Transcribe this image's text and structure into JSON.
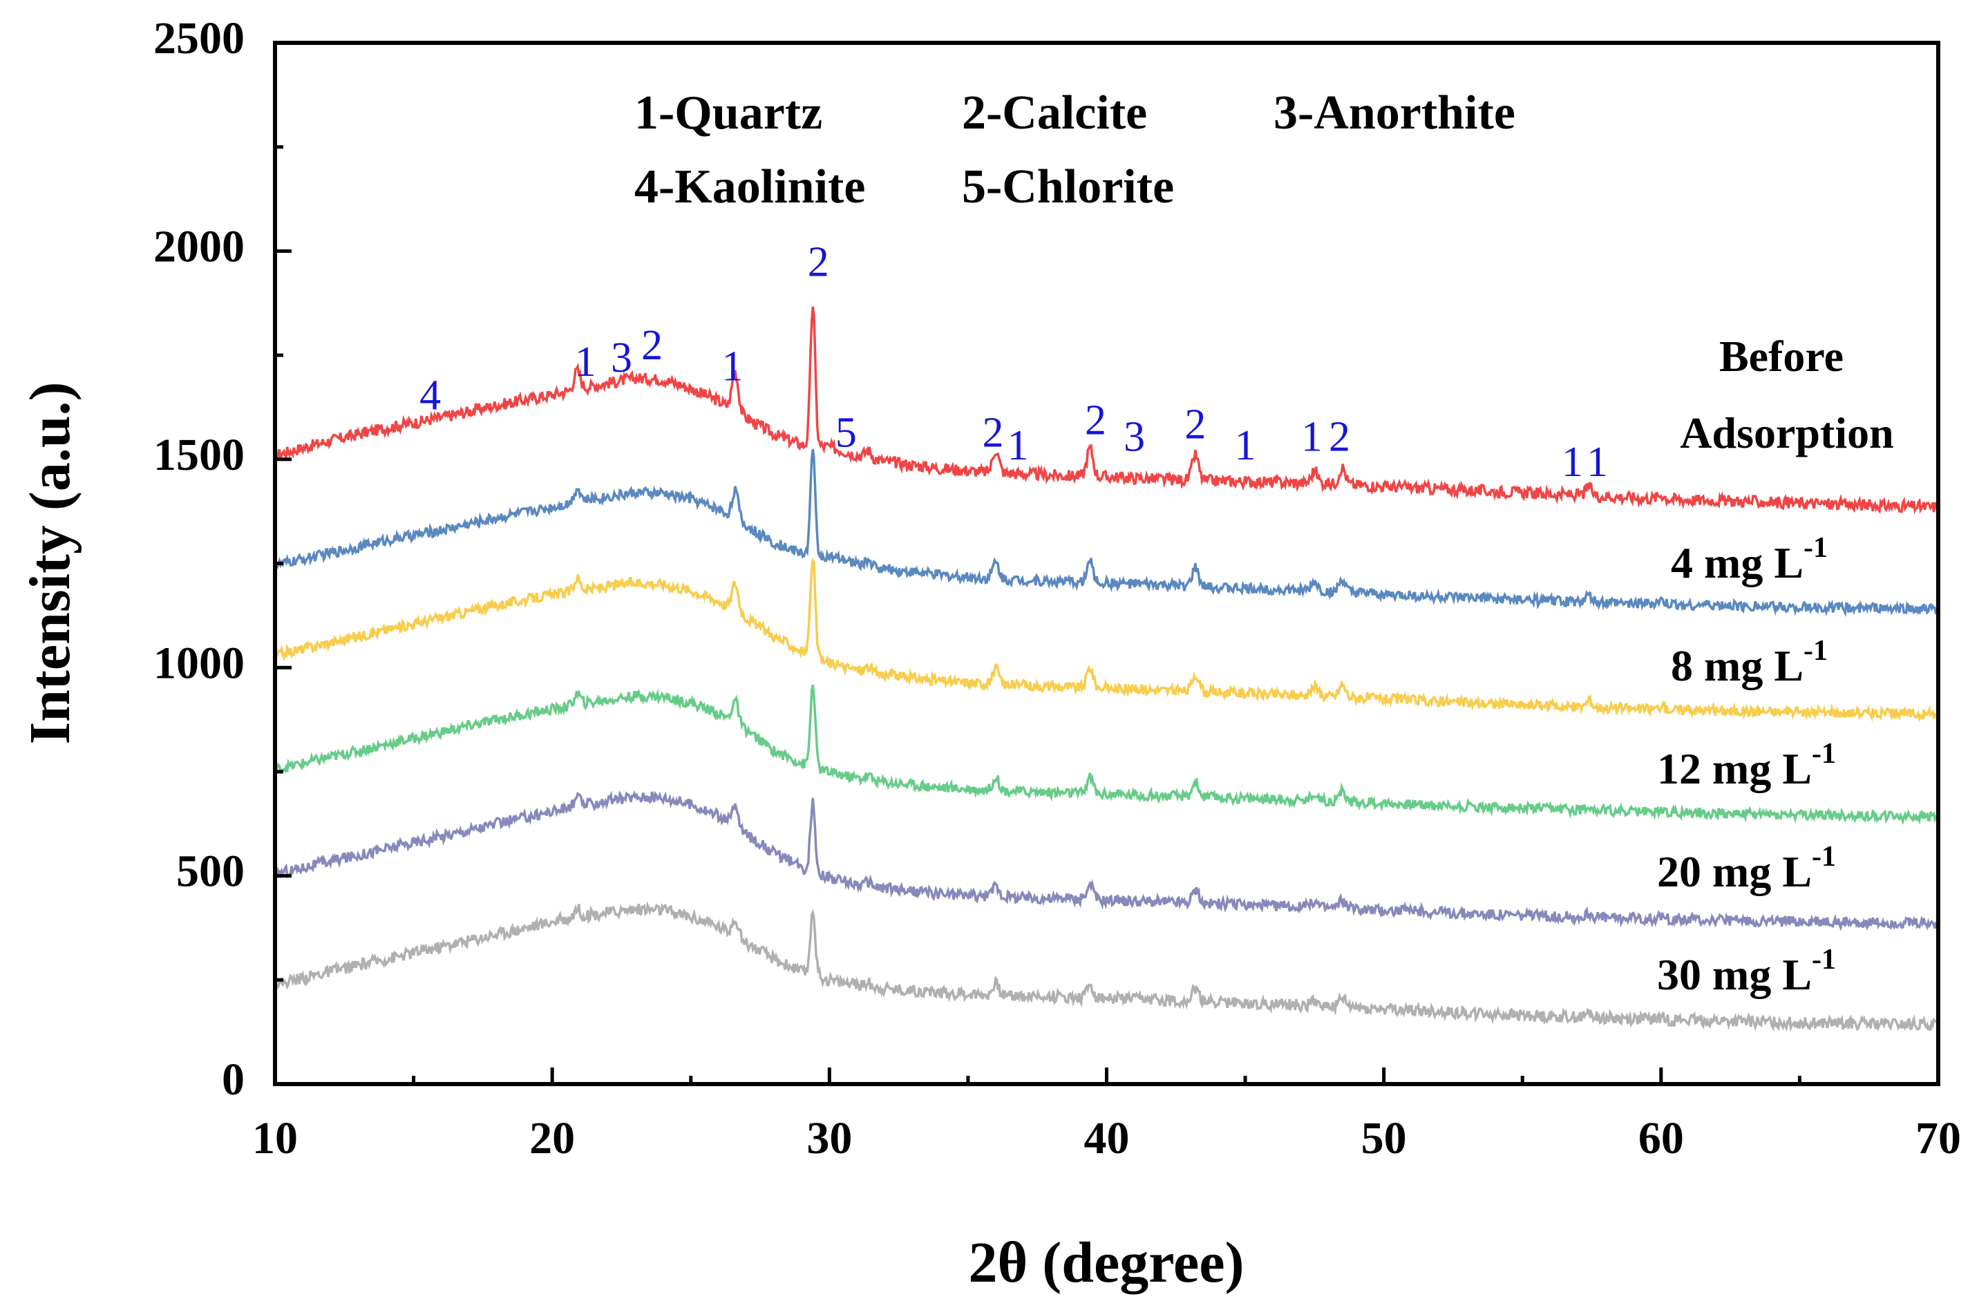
{
  "chart_data": {
    "type": "line",
    "xlabel": "2θ (degree)",
    "ylabel": "Intensity (a.u.)",
    "xlim": [
      10,
      70
    ],
    "ylim": [
      0,
      2500
    ],
    "xticks": [
      10,
      20,
      30,
      40,
      50,
      60,
      70
    ],
    "yticks": [
      0,
      500,
      1000,
      1500,
      2000,
      2500
    ],
    "xtick_labels": [
      "10",
      "20",
      "30",
      "40",
      "50",
      "60",
      "70"
    ],
    "ytick_labels": [
      "0",
      "500",
      "1000",
      "1500",
      "2000",
      "2500"
    ],
    "phase_legend": {
      "row1": [
        "1-Quartz",
        "2-Calcite",
        "3-Anorthite"
      ],
      "row2": [
        "4-Kaolinite",
        "5-Chlorite"
      ]
    },
    "peak_positions_deg": [
      20.9,
      26.6,
      29.4,
      31.4,
      36.0,
      39.4,
      43.2,
      47.5,
      48.5,
      57.4,
      60.0
    ],
    "peak_relative_intensity": [
      0.13,
      0.28,
      1.0,
      0.05,
      0.16,
      0.2,
      0.18,
      0.09,
      0.12,
      0.06,
      0.03
    ],
    "peak_annotations": [
      {
        "text": "4",
        "x": 15.6,
        "y": 1620
      },
      {
        "text": "1",
        "x": 21.2,
        "y": 1700
      },
      {
        "text": "3",
        "x": 22.5,
        "y": 1710
      },
      {
        "text": "2",
        "x": 23.6,
        "y": 1740
      },
      {
        "text": "1",
        "x": 26.5,
        "y": 1690
      },
      {
        "text": "2",
        "x": 29.6,
        "y": 1940
      },
      {
        "text": "5",
        "x": 30.6,
        "y": 1530
      },
      {
        "text": "2",
        "x": 35.9,
        "y": 1530
      },
      {
        "text": "1",
        "x": 36.8,
        "y": 1500
      },
      {
        "text": "2",
        "x": 39.6,
        "y": 1560
      },
      {
        "text": "3",
        "x": 41.0,
        "y": 1520
      },
      {
        "text": "2",
        "x": 43.2,
        "y": 1550
      },
      {
        "text": "1",
        "x": 45.0,
        "y": 1500
      },
      {
        "text": "1",
        "x": 47.4,
        "y": 1520
      },
      {
        "text": "2",
        "x": 48.4,
        "y": 1520
      },
      {
        "text": "1",
        "x": 56.8,
        "y": 1460
      },
      {
        "text": "1",
        "x": 57.7,
        "y": 1460
      }
    ],
    "series": [
      {
        "name": "Before Adsorption",
        "label_lines": [
          "Before",
          "Adsorption"
        ],
        "color": "#f04545",
        "x": [
          10,
          12,
          14,
          16,
          18,
          20,
          21,
          22,
          23,
          24,
          25,
          26,
          27,
          28,
          29,
          30,
          31,
          32,
          34,
          36,
          38,
          40,
          42,
          44,
          46,
          48,
          50,
          55,
          60,
          65,
          70
        ],
        "y": [
          1510,
          1545,
          1575,
          1600,
          1630,
          1655,
          1670,
          1683,
          1695,
          1692,
          1670,
          1640,
          1600,
          1560,
          1535,
          1530,
          1510,
          1495,
          1478,
          1468,
          1462,
          1458,
          1452,
          1448,
          1445,
          1442,
          1435,
          1420,
          1405,
          1395,
          1385
        ],
        "peak_scale": 340,
        "noise": 14
      },
      {
        "name": "4 mg L-1",
        "label_main": "4 mg L",
        "label_sup": "-1",
        "color": "#5a88c0",
        "x": [
          10,
          12,
          14,
          16,
          18,
          20,
          21,
          22,
          23,
          24,
          25,
          26,
          27,
          28,
          29,
          30,
          31,
          32,
          34,
          36,
          38,
          40,
          42,
          44,
          46,
          48,
          50,
          55,
          60,
          65,
          70
        ],
        "y": [
          1245,
          1275,
          1305,
          1330,
          1360,
          1385,
          1400,
          1410,
          1420,
          1418,
          1405,
          1380,
          1340,
          1300,
          1275,
          1265,
          1250,
          1237,
          1222,
          1213,
          1207,
          1203,
          1198,
          1192,
          1188,
          1182,
          1175,
          1162,
          1152,
          1145,
          1140
        ],
        "peak_scale": 250,
        "noise": 12
      },
      {
        "name": "8 mg L-1",
        "label_main": "8 mg L",
        "label_sup": "-1",
        "color": "#f8cc4c",
        "x": [
          10,
          12,
          14,
          16,
          18,
          20,
          21,
          22,
          23,
          24,
          25,
          26,
          27,
          28,
          29,
          30,
          31,
          32,
          34,
          36,
          38,
          40,
          42,
          44,
          46,
          48,
          50,
          55,
          60,
          65,
          70
        ],
        "y": [
          1030,
          1060,
          1090,
          1120,
          1150,
          1175,
          1185,
          1195,
          1205,
          1200,
          1185,
          1160,
          1120,
          1075,
          1040,
          1010,
          995,
          983,
          968,
          960,
          955,
          951,
          946,
          941,
          936,
          932,
          925,
          910,
          900,
          893,
          888
        ],
        "peak_scale": 240,
        "noise": 12
      },
      {
        "name": "12 mg L-1",
        "label_main": "12 mg L",
        "label_sup": "-1",
        "color": "#66cc88",
        "x": [
          10,
          12,
          14,
          16,
          18,
          20,
          21,
          22,
          23,
          24,
          25,
          26,
          27,
          28,
          29,
          30,
          31,
          32,
          34,
          36,
          38,
          40,
          42,
          44,
          46,
          48,
          50,
          55,
          60,
          65,
          70
        ],
        "y": [
          755,
          785,
          815,
          845,
          875,
          900,
          912,
          922,
          932,
          930,
          915,
          890,
          850,
          800,
          770,
          748,
          735,
          725,
          712,
          705,
          700,
          696,
          692,
          688,
          684,
          680,
          674,
          662,
          653,
          646,
          642
        ],
        "peak_scale": 200,
        "noise": 12
      },
      {
        "name": "20 mg L-1",
        "label_main": "20 mg L",
        "label_sup": "-1",
        "color": "#8888bb",
        "x": [
          10,
          12,
          14,
          16,
          18,
          20,
          21,
          22,
          23,
          24,
          25,
          26,
          27,
          28,
          29,
          30,
          31,
          32,
          34,
          36,
          38,
          40,
          42,
          44,
          46,
          48,
          50,
          55,
          60,
          65,
          70
        ],
        "y": [
          505,
          535,
          565,
          595,
          625,
          655,
          668,
          680,
          690,
          688,
          672,
          645,
          600,
          555,
          520,
          495,
          480,
          470,
          457,
          450,
          446,
          442,
          438,
          433,
          428,
          424,
          418,
          405,
          396,
          390,
          386
        ],
        "peak_scale": 170,
        "noise": 13
      },
      {
        "name": "30 mg L-1",
        "label_main": "30 mg L",
        "label_sup": "-1",
        "color": "#b0b0b0",
        "x": [
          10,
          12,
          14,
          16,
          18,
          20,
          21,
          22,
          23,
          24,
          25,
          26,
          27,
          28,
          29,
          30,
          31,
          32,
          34,
          36,
          38,
          40,
          42,
          44,
          46,
          48,
          50,
          55,
          60,
          65,
          70
        ],
        "y": [
          240,
          270,
          300,
          330,
          360,
          390,
          402,
          412,
          420,
          418,
          402,
          378,
          340,
          300,
          270,
          250,
          238,
          230,
          220,
          214,
          210,
          206,
          202,
          197,
          192,
          187,
          180,
          165,
          155,
          147,
          142
        ],
        "peak_scale": 160,
        "noise": 14
      }
    ]
  }
}
